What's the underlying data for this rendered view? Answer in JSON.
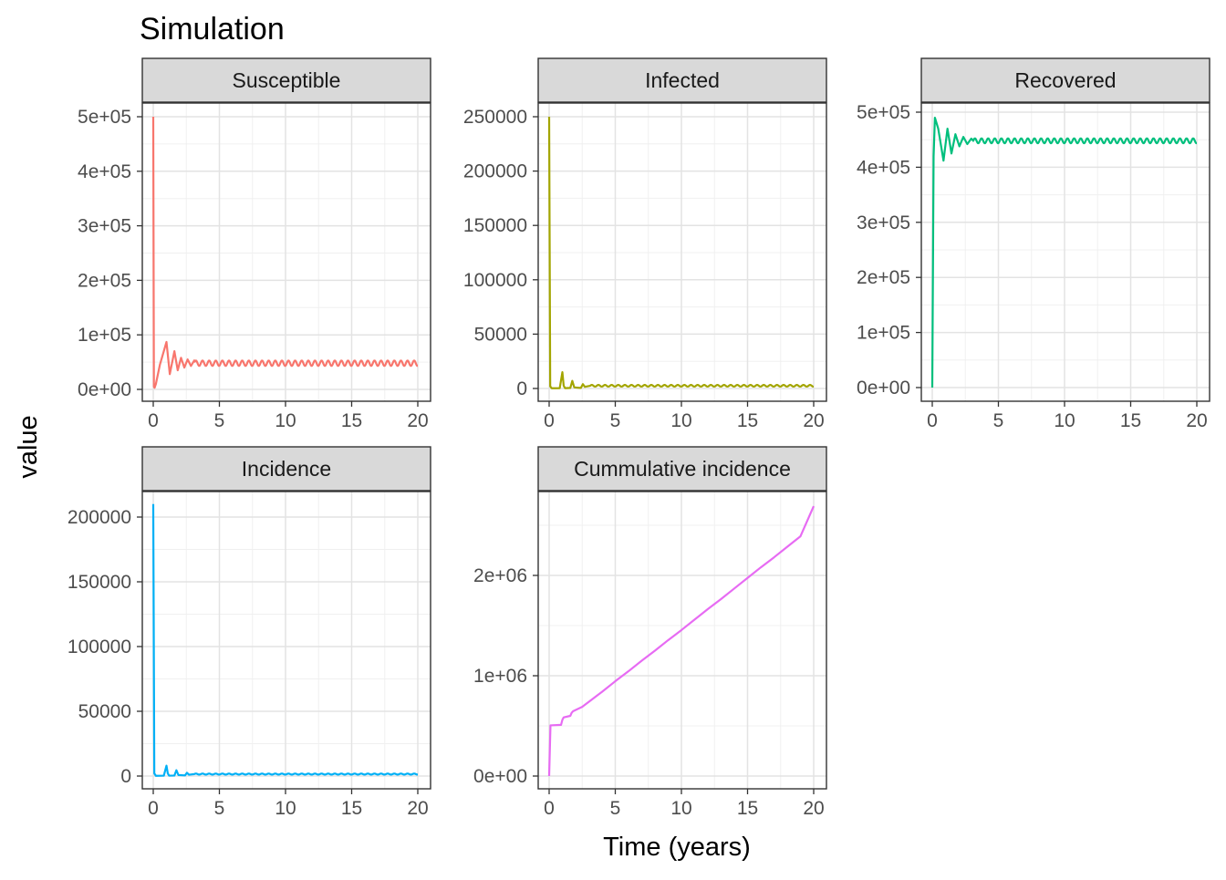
{
  "title": "Simulation",
  "xlabel": "Time (years)",
  "ylabel": "value",
  "colors": {
    "Susceptible": "#F8766D",
    "Infected": "#A3A500",
    "Recovered": "#00BF7D",
    "Incidence": "#00B0F6",
    "Cummulative incidence": "#E76BF3"
  },
  "chart_data": [
    {
      "type": "line",
      "panel": "Susceptible",
      "xlim": [
        0,
        20
      ],
      "ylim": [
        0,
        500000
      ],
      "xticks": [
        0,
        5,
        10,
        15,
        20
      ],
      "yticks": [
        0,
        100000,
        200000,
        300000,
        400000,
        500000
      ],
      "ytick_labels": [
        "0e+00",
        "1e+05",
        "2e+05",
        "3e+05",
        "4e+05",
        "5e+05"
      ],
      "x": [
        0,
        0.05,
        0.1,
        0.2,
        0.5,
        1.0,
        1.25,
        1.6,
        1.85,
        2.1,
        2.35,
        2.6,
        2.85,
        3.1
      ],
      "values": [
        500000,
        5000,
        3000,
        10000,
        45000,
        87000,
        28000,
        70000,
        35000,
        58000,
        40000,
        55000,
        43000,
        53000
      ],
      "steady": {
        "x_start": 3.1,
        "x_end": 20,
        "mean": 48000,
        "amplitude": 5000,
        "period": 0.5
      }
    },
    {
      "type": "line",
      "panel": "Infected",
      "xlim": [
        0,
        20
      ],
      "ylim": [
        0,
        250000
      ],
      "xticks": [
        0,
        5,
        10,
        15,
        20
      ],
      "yticks": [
        0,
        50000,
        100000,
        150000,
        200000,
        250000
      ],
      "ytick_labels": [
        "0",
        "50000",
        "100000",
        "150000",
        "200000",
        "250000"
      ],
      "x": [
        0,
        0.08,
        0.2,
        0.8,
        1.0,
        1.1,
        1.2,
        1.6,
        1.75,
        1.9,
        2.4,
        2.55,
        2.7,
        3.1
      ],
      "values": [
        250000,
        2000,
        200,
        300,
        15000,
        2500,
        300,
        500,
        7000,
        1000,
        500,
        4000,
        1500,
        2500
      ],
      "steady": {
        "x_start": 3.1,
        "x_end": 20,
        "mean": 2500,
        "amplitude": 800,
        "period": 0.5
      }
    },
    {
      "type": "line",
      "panel": "Recovered",
      "xlim": [
        0,
        20
      ],
      "ylim": [
        0,
        500000
      ],
      "xticks": [
        0,
        5,
        10,
        15,
        20
      ],
      "yticks": [
        0,
        100000,
        200000,
        300000,
        400000,
        500000
      ],
      "ytick_labels": [
        "0e+00",
        "1e+05",
        "2e+05",
        "3e+05",
        "4e+05",
        "5e+05"
      ],
      "x": [
        0,
        0.1,
        0.2,
        0.45,
        0.85,
        1.15,
        1.45,
        1.75,
        2.05,
        2.35,
        2.65,
        2.95,
        3.1
      ],
      "values": [
        0,
        420000,
        490000,
        470000,
        412000,
        470000,
        425000,
        460000,
        438000,
        455000,
        442000,
        452000,
        448000
      ],
      "steady": {
        "x_start": 3.1,
        "x_end": 20,
        "mean": 448000,
        "amplitude": 4500,
        "period": 0.5
      }
    },
    {
      "type": "line",
      "panel": "Incidence",
      "xlim": [
        0,
        20
      ],
      "ylim": [
        0,
        210000
      ],
      "xticks": [
        0,
        5,
        10,
        15,
        20
      ],
      "yticks": [
        0,
        50000,
        100000,
        150000,
        200000
      ],
      "ytick_labels": [
        "0",
        "50000",
        "100000",
        "150000",
        "200000"
      ],
      "x": [
        0,
        0.08,
        0.2,
        0.8,
        1.0,
        1.1,
        1.2,
        1.6,
        1.75,
        1.9,
        2.4,
        2.55,
        2.7,
        3.1
      ],
      "values": [
        210000,
        2000,
        200,
        300,
        8000,
        2000,
        300,
        400,
        4500,
        800,
        500,
        2500,
        1000,
        1500
      ],
      "steady": {
        "x_start": 3.1,
        "x_end": 20,
        "mean": 1500,
        "amplitude": 400,
        "period": 0.5
      }
    },
    {
      "type": "line",
      "panel": "Cummulative incidence",
      "xlim": [
        0,
        20
      ],
      "ylim": [
        0,
        2700000
      ],
      "xticks": [
        0,
        5,
        10,
        15,
        20
      ],
      "yticks": [
        0,
        1000000,
        2000000
      ],
      "ytick_labels": [
        "0e+00",
        "1e+06",
        "2e+06"
      ],
      "x": [
        0,
        0.1,
        0.9,
        1.0,
        1.1,
        1.6,
        1.7,
        1.8,
        2.5,
        2.6,
        3.0,
        4.0,
        5.0,
        6.0,
        7.0,
        8.0,
        9.0,
        10.0,
        11.0,
        12.0,
        13.0,
        14.0,
        15.0,
        16.0,
        17.0,
        18.0,
        19.0,
        20.0
      ],
      "values": [
        0,
        505000,
        510000,
        560000,
        585000,
        600000,
        630000,
        645000,
        690000,
        700000,
        740000,
        840000,
        945000,
        1045000,
        1150000,
        1250000,
        1355000,
        1455000,
        1560000,
        1665000,
        1765000,
        1870000,
        1975000,
        2080000,
        2180000,
        2285000,
        2390000,
        2690000
      ]
    }
  ]
}
